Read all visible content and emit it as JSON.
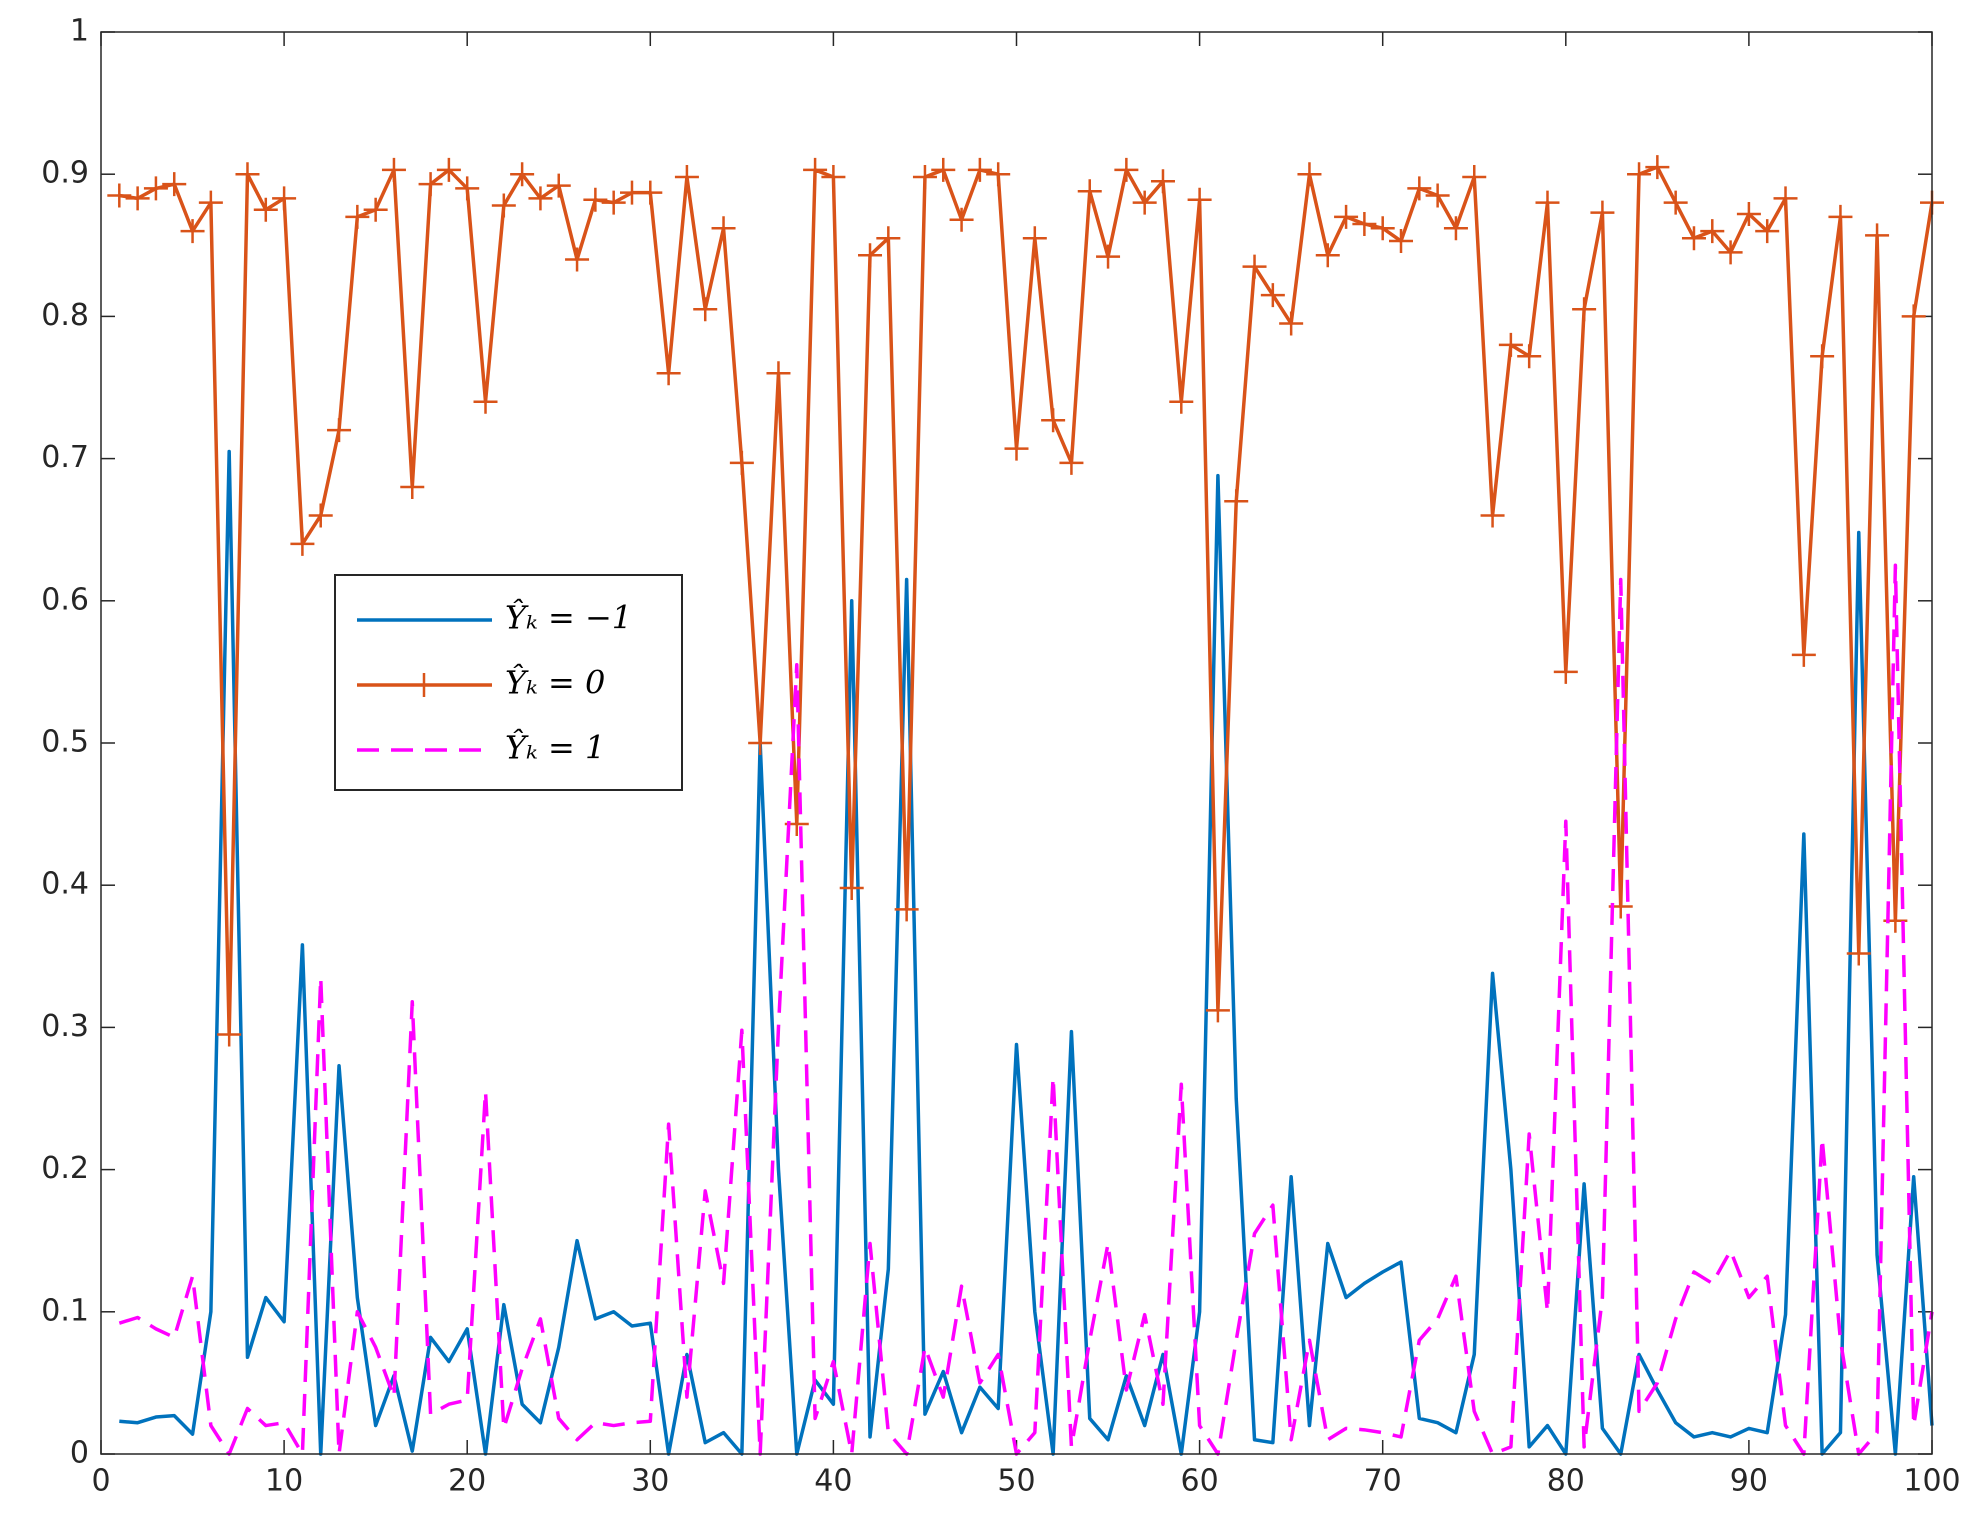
{
  "chart_data": {
    "type": "line",
    "x": [
      1,
      2,
      3,
      4,
      5,
      6,
      7,
      8,
      9,
      10,
      11,
      12,
      13,
      14,
      15,
      16,
      17,
      18,
      19,
      20,
      21,
      22,
      23,
      24,
      25,
      26,
      27,
      28,
      29,
      30,
      31,
      32,
      33,
      34,
      35,
      36,
      37,
      38,
      39,
      40,
      41,
      42,
      43,
      44,
      45,
      46,
      47,
      48,
      49,
      50,
      51,
      52,
      53,
      54,
      55,
      56,
      57,
      58,
      59,
      60,
      61,
      62,
      63,
      64,
      65,
      66,
      67,
      68,
      69,
      70,
      71,
      72,
      73,
      74,
      75,
      76,
      77,
      78,
      79,
      80,
      81,
      82,
      83,
      84,
      85,
      86,
      87,
      88,
      89,
      90,
      91,
      92,
      93,
      94,
      95,
      96,
      97,
      98,
      99,
      100
    ],
    "series": [
      {
        "name": "Ŷₖ = −1",
        "color": "#0072bd",
        "marker": "none",
        "dash": "solid",
        "values": [
          0.023,
          0.022,
          0.026,
          0.027,
          0.014,
          0.1,
          0.705,
          0.068,
          0.11,
          0.093,
          0.358,
          0,
          0.273,
          0.11,
          0.02,
          0.055,
          0.002,
          0.082,
          0.065,
          0.088,
          0,
          0.105,
          0.035,
          0.022,
          0.075,
          0.15,
          0.095,
          0.1,
          0.09,
          0.092,
          0,
          0.07,
          0.008,
          0.015,
          0,
          0.5,
          0.2,
          0,
          0.052,
          0.035,
          0.6,
          0.012,
          0.13,
          0.615,
          0.028,
          0.058,
          0.015,
          0.047,
          0.032,
          0.288,
          0.1,
          0,
          0.297,
          0.025,
          0.01,
          0.055,
          0.02,
          0.07,
          0,
          0.1,
          0.688,
          0.25,
          0.01,
          0.008,
          0.195,
          0.02,
          0.148,
          0.11,
          0.12,
          0.128,
          0.135,
          0.025,
          0.022,
          0.015,
          0.07,
          0.338,
          0.2,
          0.005,
          0.02,
          0,
          0.19,
          0.018,
          0,
          0.07,
          0.045,
          0.022,
          0.012,
          0.015,
          0.012,
          0.018,
          0.015,
          0.098,
          0.436,
          0,
          0.015,
          0.648,
          0.14,
          0,
          0.195,
          0.02
        ]
      },
      {
        "name": "Ŷₖ = 0",
        "color": "#d95319",
        "marker": "plus",
        "dash": "solid",
        "values": [
          0.885,
          0.883,
          0.89,
          0.893,
          0.86,
          0.88,
          0.295,
          0.9,
          0.875,
          0.883,
          0.64,
          0.66,
          0.72,
          0.87,
          0.875,
          0.903,
          0.68,
          0.893,
          0.903,
          0.89,
          0.74,
          0.878,
          0.9,
          0.883,
          0.892,
          0.84,
          0.882,
          0.88,
          0.887,
          0.887,
          0.76,
          0.898,
          0.805,
          0.862,
          0.697,
          0.5,
          0.76,
          0.443,
          0.903,
          0.898,
          0.398,
          0.843,
          0.855,
          0.383,
          0.898,
          0.903,
          0.868,
          0.903,
          0.9,
          0.707,
          0.855,
          0.727,
          0.697,
          0.888,
          0.842,
          0.903,
          0.88,
          0.895,
          0.74,
          0.882,
          0.312,
          0.67,
          0.835,
          0.815,
          0.795,
          0.9,
          0.843,
          0.87,
          0.865,
          0.862,
          0.853,
          0.89,
          0.885,
          0.862,
          0.898,
          0.66,
          0.78,
          0.772,
          0.88,
          0.55,
          0.805,
          0.873,
          0.385,
          0.9,
          0.905,
          0.88,
          0.855,
          0.86,
          0.845,
          0.872,
          0.86,
          0.883,
          0.562,
          0.772,
          0.87,
          0.352,
          0.857,
          0.375,
          0.8,
          0.88
        ]
      },
      {
        "name": "Ŷₖ = 1",
        "color": "#ff00ff",
        "marker": "none",
        "dash": "dashed",
        "values": [
          0.092,
          0.096,
          0.088,
          0.082,
          0.125,
          0.02,
          0,
          0.032,
          0.02,
          0.022,
          0,
          0.335,
          0,
          0.1,
          0.075,
          0.04,
          0.318,
          0.028,
          0.035,
          0.038,
          0.255,
          0.018,
          0.06,
          0.095,
          0.025,
          0.01,
          0.022,
          0.02,
          0.022,
          0.023,
          0.232,
          0.04,
          0.185,
          0.12,
          0.298,
          0,
          0.3,
          0.555,
          0.025,
          0.065,
          0,
          0.148,
          0.015,
          0,
          0.075,
          0.04,
          0.118,
          0.05,
          0.07,
          0,
          0.015,
          0.265,
          0.005,
          0.08,
          0.148,
          0.045,
          0.098,
          0.035,
          0.26,
          0.02,
          0,
          0.08,
          0.155,
          0.175,
          0.01,
          0.08,
          0.01,
          0.018,
          0.017,
          0.015,
          0.012,
          0.08,
          0.095,
          0.125,
          0.03,
          0,
          0.005,
          0.225,
          0.1,
          0.445,
          0.005,
          0.11,
          0.615,
          0.03,
          0.05,
          0.095,
          0.128,
          0.12,
          0.143,
          0.11,
          0.125,
          0.02,
          0,
          0.222,
          0.08,
          0,
          0.015,
          0.625,
          0.02,
          0.1
        ]
      }
    ],
    "xlim": [
      0,
      100
    ],
    "xticks": [
      0,
      10,
      20,
      30,
      40,
      50,
      60,
      70,
      80,
      90,
      100
    ],
    "ylim": [
      0,
      1
    ],
    "yticks": [
      0,
      0.1,
      0.2,
      0.3,
      0.4,
      0.5,
      0.6,
      0.7,
      0.8,
      0.9,
      1
    ],
    "grid": false,
    "legend": "inside-left"
  }
}
